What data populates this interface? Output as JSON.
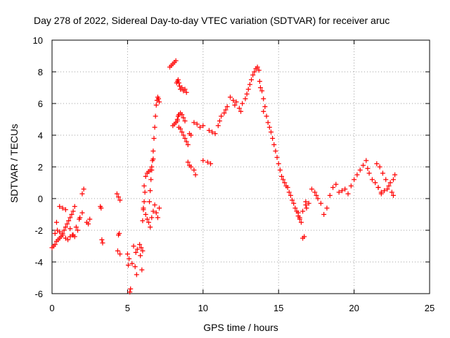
{
  "chart_data": {
    "type": "scatter",
    "title": "Day 278 of 2022, Sidereal Day-to-day VTEC variation (SDTVAR) for receiver aruc",
    "xlabel": "GPS time / hours",
    "ylabel": "SDTVAR / TECUs",
    "xlim": [
      0,
      25
    ],
    "ylim": [
      -6,
      10
    ],
    "xticks": [
      0,
      5,
      10,
      15,
      20,
      25
    ],
    "yticks": [
      -6,
      -4,
      -2,
      0,
      2,
      4,
      6,
      8,
      10
    ],
    "grid": true,
    "marker": "plus",
    "color": "#ff0000",
    "series": [
      {
        "name": "SDTVAR",
        "x": [
          0.0,
          0.1,
          0.2,
          0.3,
          0.4,
          0.5,
          0.6,
          0.7,
          0.8,
          0.9,
          1.0,
          1.1,
          1.2,
          1.3,
          1.4,
          1.5,
          0.2,
          0.35,
          0.5,
          0.7,
          0.9,
          1.05,
          1.2,
          1.35,
          1.5,
          1.7,
          1.85,
          2.0,
          2.1,
          0.3,
          0.5,
          0.7,
          0.9,
          1.2,
          1.4,
          1.6,
          1.8,
          2.0,
          2.3,
          2.4,
          2.5,
          3.2,
          3.25,
          3.3,
          3.35,
          4.3,
          4.4,
          4.5,
          4.45,
          4.4,
          4.35,
          4.5,
          5.0,
          5.05,
          5.1,
          5.15,
          5.2,
          5.3,
          5.4,
          5.5,
          5.55,
          5.6,
          5.65,
          5.8,
          5.85,
          5.9,
          5.95,
          6.0,
          6.05,
          6.1,
          6.0,
          6.05,
          6.1,
          6.15,
          6.2,
          6.3,
          6.4,
          6.45,
          6.5,
          6.55,
          6.6,
          6.65,
          6.7,
          6.75,
          6.8,
          6.85,
          6.9,
          6.95,
          7.0,
          7.05,
          7.1,
          6.5,
          6.6,
          6.7,
          6.8,
          6.9,
          7.0,
          7.1,
          6.2,
          6.3,
          6.4,
          6.5,
          6.6,
          6.7,
          7.8,
          7.9,
          8.0,
          8.1,
          8.2,
          8.25,
          8.3,
          8.35,
          8.4,
          8.45,
          8.5,
          8.6,
          8.7,
          8.8,
          8.9,
          8.3,
          8.35,
          8.4,
          8.5,
          8.6,
          8.7,
          8.8,
          8.0,
          8.1,
          8.2,
          8.3,
          8.4,
          8.5,
          8.6,
          8.7,
          8.8,
          8.9,
          9.0,
          9.1,
          9.2,
          9.4,
          9.6,
          9.8,
          10.0,
          9.0,
          9.1,
          9.2,
          9.4,
          9.5,
          10.0,
          10.3,
          10.5,
          10.4,
          10.6,
          10.8,
          11.0,
          11.1,
          11.2,
          11.4,
          11.5,
          11.6,
          11.8,
          12.0,
          12.1,
          12.2,
          12.4,
          12.5,
          12.6,
          12.8,
          12.9,
          13.0,
          13.1,
          13.2,
          13.3,
          13.4,
          13.5,
          13.6,
          13.7,
          13.75,
          13.8,
          13.9,
          14.0,
          14.1,
          14.0,
          14.2,
          14.3,
          14.4,
          14.5,
          14.6,
          14.7,
          14.8,
          14.9,
          15.0,
          15.1,
          15.2,
          15.3,
          15.4,
          15.5,
          15.6,
          15.7,
          15.8,
          15.9,
          16.0,
          16.1,
          16.2,
          16.3,
          16.4,
          16.5,
          16.6,
          16.7,
          16.8,
          16.85,
          16.3,
          16.4,
          16.6,
          16.8,
          17.0,
          17.2,
          17.4,
          17.5,
          17.6,
          17.8,
          18.0,
          18.2,
          18.4,
          18.6,
          18.8,
          19.0,
          19.2,
          19.4,
          19.6,
          19.8,
          20.0,
          20.2,
          20.4,
          20.6,
          20.8,
          20.9,
          21.0,
          21.2,
          21.4,
          21.6,
          21.8,
          22.0,
          21.5,
          21.7,
          21.9,
          22.1,
          22.3,
          22.5,
          22.6,
          22.7,
          22.6,
          22.4,
          22.2,
          21.6,
          21.8
        ],
        "y": [
          -3.1,
          -3.0,
          -2.9,
          -2.7,
          -2.6,
          -2.5,
          -2.4,
          -2.2,
          -2.0,
          -1.8,
          -1.6,
          -1.4,
          -1.2,
          -1.0,
          -0.8,
          -0.5,
          -2.2,
          -2.0,
          -2.1,
          -2.3,
          -2.5,
          -2.6,
          -2.4,
          -2.3,
          -2.4,
          -2.0,
          -1.2,
          0.3,
          0.6,
          -1.5,
          -0.5,
          -0.6,
          -0.7,
          -1.9,
          -2.3,
          -1.8,
          -1.3,
          -0.9,
          -1.5,
          -1.6,
          -1.3,
          -0.5,
          -0.6,
          -2.6,
          -2.8,
          0.3,
          0.1,
          -0.1,
          -2.2,
          -2.3,
          -3.3,
          -3.5,
          -3.5,
          -4.2,
          -3.8,
          -5.9,
          -5.7,
          -4.1,
          -3.0,
          -4.3,
          -3.4,
          -4.8,
          -3.2,
          -2.9,
          -3.6,
          -3.1,
          -4.5,
          -3.3,
          -0.6,
          -0.2,
          -1.4,
          -0.7,
          0.8,
          0.4,
          -1.0,
          -1.3,
          -1.5,
          -0.2,
          0.5,
          1.2,
          1.8,
          2.4,
          3.0,
          3.8,
          4.5,
          5.2,
          5.9,
          6.2,
          6.4,
          6.3,
          6.1,
          -1.8,
          -1.2,
          -0.8,
          -0.4,
          -0.9,
          -1.2,
          -0.6,
          1.4,
          1.6,
          1.7,
          1.8,
          2.0,
          2.5,
          8.3,
          8.4,
          8.5,
          8.6,
          8.7,
          7.3,
          7.4,
          7.5,
          7.3,
          7.1,
          6.9,
          7.0,
          6.8,
          6.9,
          6.7,
          5.0,
          5.2,
          5.3,
          5.4,
          5.3,
          5.1,
          4.9,
          4.6,
          4.7,
          4.8,
          4.9,
          4.5,
          4.4,
          4.2,
          4.0,
          3.8,
          3.6,
          3.4,
          4.1,
          4.0,
          4.8,
          4.7,
          4.5,
          4.6,
          2.3,
          2.1,
          2.0,
          1.8,
          1.5,
          2.4,
          2.3,
          2.2,
          4.3,
          4.2,
          4.1,
          4.6,
          4.9,
          5.2,
          5.4,
          5.6,
          5.8,
          6.4,
          6.2,
          5.9,
          6.1,
          5.7,
          5.5,
          6.0,
          6.3,
          6.6,
          6.9,
          7.2,
          7.5,
          7.8,
          8.0,
          8.2,
          8.3,
          8.1,
          7.4,
          7.0,
          6.8,
          6.3,
          5.8,
          5.5,
          5.2,
          4.8,
          4.5,
          4.2,
          3.8,
          3.4,
          3.0,
          2.6,
          2.2,
          1.8,
          1.4,
          1.2,
          1.0,
          0.8,
          0.7,
          0.4,
          0.2,
          -0.1,
          -0.3,
          -0.6,
          -0.8,
          -1.1,
          -1.3,
          -1.5,
          -2.5,
          -2.4,
          -0.2,
          -0.6,
          -0.9,
          -1.2,
          -0.8,
          -0.4,
          -0.3,
          0.6,
          0.4,
          0.2,
          0.0,
          -0.3,
          -1.0,
          -0.6,
          0.2,
          0.7,
          0.9,
          0.4,
          0.5,
          0.6,
          0.3,
          0.8,
          1.2,
          1.5,
          1.8,
          2.1,
          2.4,
          1.9,
          1.6,
          1.2,
          1.0,
          0.7,
          0.4,
          0.5,
          2.2,
          2.0,
          1.6,
          1.2,
          0.8,
          0.4,
          0.2,
          1.5,
          1.2,
          1.0,
          0.6,
          0.7,
          0.3
        ]
      }
    ]
  }
}
